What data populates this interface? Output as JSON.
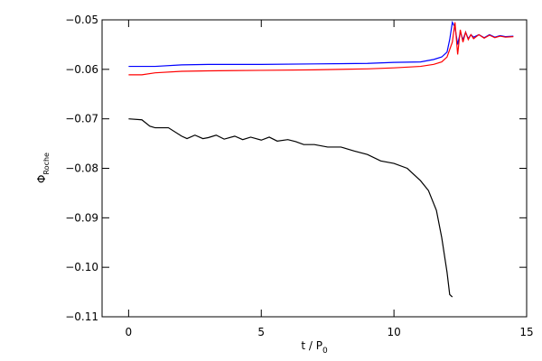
{
  "chart_data": {
    "type": "line",
    "xlabel": "t / P",
    "xlabel_sub": "0",
    "ylabel": "Φ",
    "ylabel_sub": "Roche",
    "xlim": [
      -1,
      15
    ],
    "xticks": [
      0,
      5,
      10,
      15
    ],
    "ylim": [
      -0.11,
      -0.05
    ],
    "yticks": [
      {
        "value": -0.11,
        "label": "−0.11"
      },
      {
        "value": -0.1,
        "label": "−0.10"
      },
      {
        "value": -0.09,
        "label": "−0.09"
      },
      {
        "value": -0.08,
        "label": "−0.08"
      },
      {
        "value": -0.07,
        "label": "−0.07"
      },
      {
        "value": -0.06,
        "label": "−0.06"
      },
      {
        "value": -0.05,
        "label": "−0.05"
      }
    ],
    "series": [
      {
        "color": "#000000",
        "x": [
          0,
          0.5,
          0.8,
          1,
          1.5,
          2,
          2.2,
          2.5,
          2.8,
          3,
          3.3,
          3.6,
          4,
          4.3,
          4.6,
          5,
          5.3,
          5.6,
          6,
          6.3,
          6.6,
          7,
          7.5,
          8,
          8.5,
          9,
          9.5,
          10,
          10.5,
          11,
          11.3,
          11.6,
          11.8,
          12,
          12.1,
          12.2
        ],
        "values": [
          -0.07,
          -0.0702,
          -0.0715,
          -0.0718,
          -0.0718,
          -0.0735,
          -0.074,
          -0.0733,
          -0.074,
          -0.0738,
          -0.0733,
          -0.0741,
          -0.0735,
          -0.0742,
          -0.0737,
          -0.0743,
          -0.0737,
          -0.0745,
          -0.0742,
          -0.0746,
          -0.0752,
          -0.0752,
          -0.0757,
          -0.0757,
          -0.0765,
          -0.0772,
          -0.0785,
          -0.079,
          -0.08,
          -0.0825,
          -0.0845,
          -0.0885,
          -0.094,
          -0.101,
          -0.1055,
          -0.106
        ]
      },
      {
        "color": "#0000ff",
        "x": [
          0,
          1,
          2,
          3,
          5,
          7,
          9,
          10,
          11,
          11.5,
          11.8,
          12,
          12.1,
          12.2,
          12.3,
          12.4,
          12.5,
          12.6,
          12.7,
          12.8,
          12.9,
          13,
          13.2,
          13.4,
          13.6,
          13.8,
          14,
          14.2,
          14.5
        ],
        "values": [
          -0.0594,
          -0.0594,
          -0.0591,
          -0.059,
          -0.059,
          -0.0589,
          -0.0588,
          -0.0586,
          -0.0585,
          -0.058,
          -0.0575,
          -0.0565,
          -0.054,
          -0.0505,
          -0.0515,
          -0.055,
          -0.0525,
          -0.054,
          -0.0525,
          -0.0538,
          -0.053,
          -0.0535,
          -0.053,
          -0.0536,
          -0.053,
          -0.0535,
          -0.0532,
          -0.0534,
          -0.0533
        ]
      },
      {
        "color": "#ff0000",
        "x": [
          0,
          0.5,
          1,
          2,
          3,
          5,
          7,
          9,
          10,
          11,
          11.5,
          11.8,
          12,
          12.1,
          12.2,
          12.3,
          12.4,
          12.5,
          12.6,
          12.7,
          12.8,
          12.9,
          13,
          13.2,
          13.4,
          13.6,
          13.8,
          14,
          14.2,
          14.5
        ],
        "values": [
          -0.0611,
          -0.0611,
          -0.0607,
          -0.0604,
          -0.0603,
          -0.0602,
          -0.0601,
          -0.0599,
          -0.0597,
          -0.0594,
          -0.059,
          -0.0585,
          -0.0575,
          -0.056,
          -0.0545,
          -0.0505,
          -0.057,
          -0.052,
          -0.0545,
          -0.0525,
          -0.054,
          -0.053,
          -0.0538,
          -0.053,
          -0.0537,
          -0.0531,
          -0.0536,
          -0.0533,
          -0.0535,
          -0.0534
        ]
      }
    ]
  }
}
